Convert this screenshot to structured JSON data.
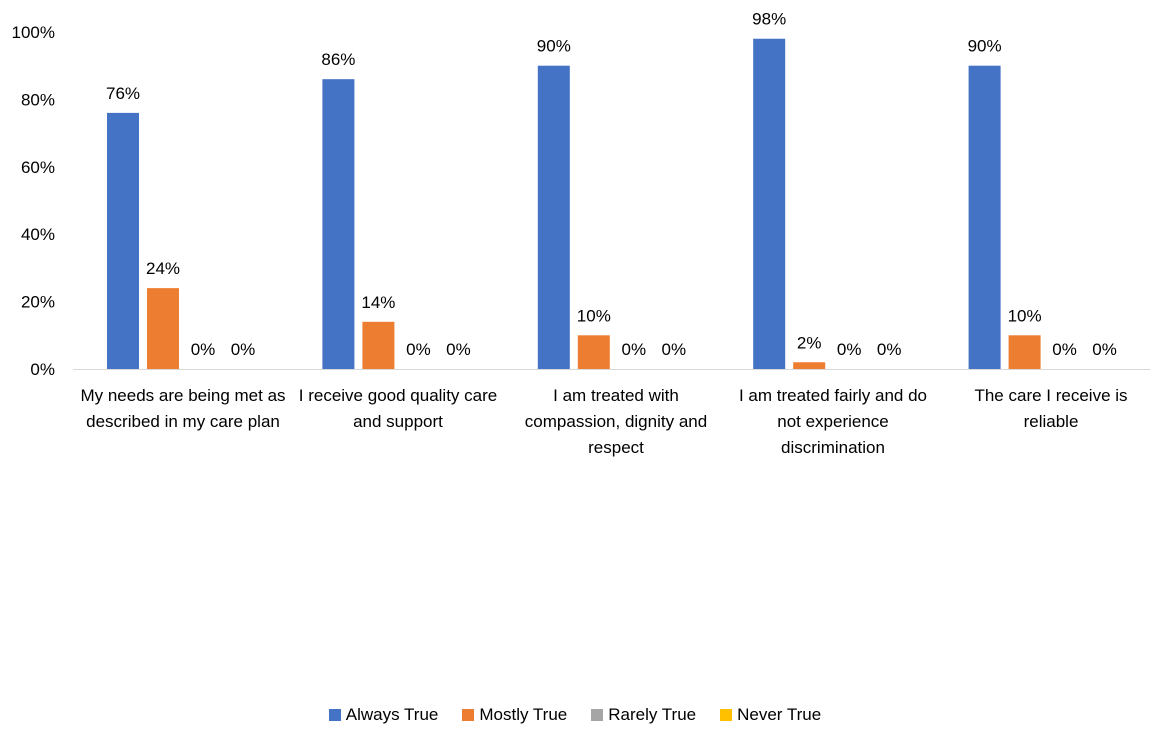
{
  "chart_data": {
    "type": "bar",
    "title": "",
    "xlabel": "",
    "ylabel": "",
    "ylim": [
      0,
      100
    ],
    "y_ticks": [
      "0%",
      "20%",
      "40%",
      "60%",
      "80%",
      "100%"
    ],
    "y_tick_values": [
      0,
      20,
      40,
      60,
      80,
      100
    ],
    "grid": false,
    "legend_position": "bottom",
    "categories": [
      "My needs are being met as described in my care plan",
      "I receive good quality care and support",
      "I am treated with compassion, dignity and respect",
      "I am treated fairly and do not experience discrimination",
      "The care I receive is reliable"
    ],
    "series": [
      {
        "name": "Always True",
        "color": "#4472C4",
        "values": [
          76,
          86,
          90,
          98,
          90
        ],
        "labels": [
          "76%",
          "86%",
          "90%",
          "98%",
          "90%"
        ]
      },
      {
        "name": "Mostly True",
        "color": "#ED7D31",
        "values": [
          24,
          14,
          10,
          2,
          10
        ],
        "labels": [
          "24%",
          "14%",
          "10%",
          "2%",
          "10%"
        ]
      },
      {
        "name": "Rarely True",
        "color": "#A5A5A5",
        "values": [
          0,
          0,
          0,
          0,
          0
        ],
        "labels": [
          "0%",
          "0%",
          "0%",
          "0%",
          "0%"
        ]
      },
      {
        "name": "Never True",
        "color": "#FFC000",
        "values": [
          0,
          0,
          0,
          0,
          0
        ],
        "labels": [
          "0%",
          "0%",
          "0%",
          "0%",
          "0%"
        ]
      }
    ]
  }
}
